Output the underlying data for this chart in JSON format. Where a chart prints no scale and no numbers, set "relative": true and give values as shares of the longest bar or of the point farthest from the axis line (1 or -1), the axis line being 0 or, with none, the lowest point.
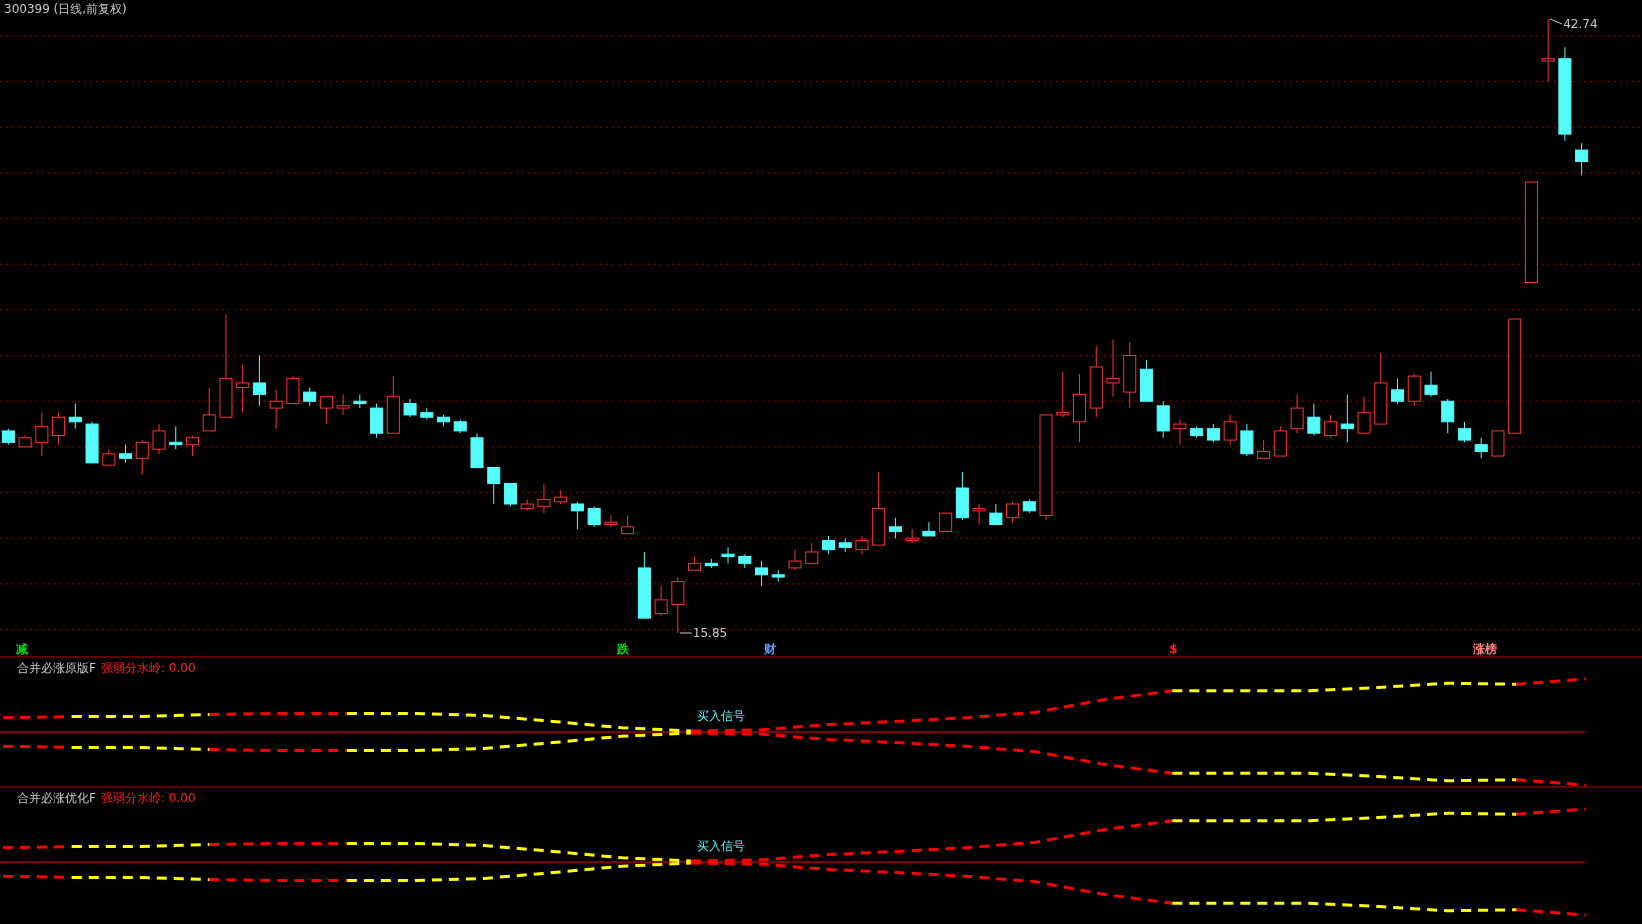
{
  "chart_data": [
    {
      "type": "candlestick",
      "title": "300399 (日线,前复权)",
      "grid": "y",
      "yticks": [
        {
          "value": 42,
          "label": null
        },
        {
          "value": 40,
          "label": null
        },
        {
          "value": 38,
          "label": null
        },
        {
          "value": 36,
          "label": null
        },
        {
          "value": 34,
          "label": null
        },
        {
          "value": 32,
          "label": null
        },
        {
          "value": 30,
          "label": null
        },
        {
          "value": 28,
          "label": null
        },
        {
          "value": 26,
          "label": null
        },
        {
          "value": 24,
          "label": null
        },
        {
          "value": 22,
          "label": null
        },
        {
          "value": 20,
          "label": null
        },
        {
          "value": 18,
          "label": null
        },
        {
          "value": 16,
          "label": null
        }
      ],
      "categories": [
        null,
        null,
        null,
        null,
        null,
        null,
        null,
        null,
        null,
        null,
        null,
        null,
        null,
        null,
        null,
        null,
        null,
        null,
        null,
        null,
        null,
        null,
        null,
        null,
        null,
        null,
        null,
        null,
        null,
        null,
        null,
        null,
        null,
        null,
        null,
        null,
        null,
        null,
        null,
        null,
        null,
        null,
        null,
        null,
        null,
        null,
        null,
        null,
        null,
        null,
        null,
        null,
        null,
        null,
        null,
        null,
        null,
        null,
        null,
        null,
        null,
        null,
        null,
        null,
        null,
        null,
        null,
        null,
        null,
        null,
        null,
        null,
        null,
        null,
        null,
        null,
        null,
        null,
        null,
        null,
        null,
        null,
        null,
        null,
        null,
        null,
        null,
        null,
        null,
        null,
        null,
        null,
        null,
        null,
        null
      ],
      "ohlc": [
        [
          24.7,
          24.8,
          24.1,
          24.2
        ],
        [
          24.0,
          24.5,
          24.0,
          24.4
        ],
        [
          24.2,
          25.5,
          23.6,
          24.9
        ],
        [
          24.5,
          25.5,
          24.1,
          25.3
        ],
        [
          25.3,
          25.9,
          24.8,
          25.1
        ],
        [
          25.0,
          25.1,
          23.3,
          23.3
        ],
        [
          23.2,
          23.9,
          23.2,
          23.7
        ],
        [
          23.7,
          24.1,
          23.3,
          23.5
        ],
        [
          23.5,
          24.3,
          22.8,
          24.2
        ],
        [
          23.9,
          25.0,
          23.7,
          24.7
        ],
        [
          24.2,
          24.9,
          23.9,
          24.1
        ],
        [
          24.1,
          24.5,
          23.6,
          24.4
        ],
        [
          24.7,
          26.6,
          24.7,
          25.4
        ],
        [
          25.3,
          29.8,
          25.3,
          27.0
        ],
        [
          26.6,
          27.6,
          25.5,
          26.8
        ],
        [
          26.8,
          28.0,
          25.8,
          26.3
        ],
        [
          25.7,
          26.5,
          24.8,
          26.0
        ],
        [
          25.9,
          27.1,
          25.9,
          27.0
        ],
        [
          26.4,
          26.6,
          25.8,
          26.0
        ],
        [
          25.7,
          26.2,
          25.0,
          26.2
        ],
        [
          25.7,
          26.3,
          25.4,
          25.8
        ],
        [
          26.0,
          26.3,
          25.7,
          25.9
        ],
        [
          25.7,
          25.9,
          24.4,
          24.6
        ],
        [
          24.6,
          27.1,
          24.6,
          26.2
        ],
        [
          25.9,
          26.1,
          25.3,
          25.4
        ],
        [
          25.5,
          25.7,
          25.2,
          25.3
        ],
        [
          25.3,
          25.4,
          24.9,
          25.1
        ],
        [
          25.1,
          25.2,
          24.6,
          24.7
        ],
        [
          24.4,
          24.6,
          23.1,
          23.1
        ],
        [
          23.1,
          23.1,
          21.5,
          22.4
        ],
        [
          22.4,
          22.4,
          21.4,
          21.5
        ],
        [
          21.3,
          21.7,
          21.2,
          21.5
        ],
        [
          21.4,
          22.4,
          21.1,
          21.7
        ],
        [
          21.6,
          22.1,
          21.5,
          21.8
        ],
        [
          21.5,
          21.6,
          20.4,
          21.2
        ],
        [
          21.3,
          21.4,
          20.5,
          20.6
        ],
        [
          20.6,
          21.0,
          20.5,
          20.7
        ],
        [
          20.2,
          21.0,
          20.2,
          20.5
        ],
        [
          18.7,
          19.4,
          16.5,
          16.5
        ],
        [
          16.7,
          17.9,
          16.6,
          17.3
        ],
        [
          17.1,
          18.3,
          15.85,
          18.1
        ],
        [
          18.6,
          19.2,
          18.6,
          18.9
        ],
        [
          18.9,
          19.1,
          18.7,
          18.8
        ],
        [
          19.3,
          19.6,
          18.9,
          19.2
        ],
        [
          19.2,
          19.3,
          18.7,
          18.9
        ],
        [
          18.7,
          19.0,
          17.9,
          18.4
        ],
        [
          18.4,
          18.6,
          18.1,
          18.3
        ],
        [
          18.7,
          19.5,
          18.6,
          19.0
        ],
        [
          18.9,
          19.8,
          18.9,
          19.4
        ],
        [
          19.9,
          20.1,
          19.3,
          19.5
        ],
        [
          19.8,
          20.0,
          19.4,
          19.6
        ],
        [
          19.5,
          20.1,
          19.3,
          19.9
        ],
        [
          19.7,
          22.9,
          19.7,
          21.3
        ],
        [
          20.5,
          20.9,
          20.0,
          20.3
        ],
        [
          19.9,
          20.4,
          19.8,
          20.0
        ],
        [
          20.3,
          20.7,
          20.1,
          20.1
        ],
        [
          20.3,
          21.1,
          20.3,
          21.1
        ],
        [
          22.2,
          22.9,
          20.8,
          20.9
        ],
        [
          21.2,
          21.5,
          20.6,
          21.3
        ],
        [
          21.1,
          21.5,
          20.6,
          20.6
        ],
        [
          20.9,
          21.6,
          20.7,
          21.5
        ],
        [
          21.6,
          21.7,
          21.1,
          21.2
        ],
        [
          21.0,
          25.4,
          20.8,
          25.4
        ],
        [
          25.4,
          27.3,
          25.3,
          25.5
        ],
        [
          25.1,
          27.2,
          24.2,
          26.3
        ],
        [
          25.7,
          28.4,
          25.3,
          27.5
        ],
        [
          26.8,
          28.7,
          26.2,
          27.0
        ],
        [
          26.4,
          28.6,
          25.7,
          28.0
        ],
        [
          27.4,
          27.8,
          26.0,
          26.0
        ],
        [
          25.8,
          26.0,
          24.4,
          24.7
        ],
        [
          24.8,
          25.2,
          24.1,
          25.0
        ],
        [
          24.8,
          24.9,
          24.4,
          24.5
        ],
        [
          24.8,
          25.0,
          24.2,
          24.3
        ],
        [
          24.3,
          25.4,
          24.1,
          25.1
        ],
        [
          24.7,
          25.0,
          23.6,
          23.7
        ],
        [
          23.5,
          24.3,
          23.5,
          23.8
        ],
        [
          23.6,
          24.9,
          23.6,
          24.7
        ],
        [
          24.8,
          26.3,
          24.6,
          25.7
        ],
        [
          25.3,
          25.9,
          24.5,
          24.6
        ],
        [
          24.5,
          25.4,
          24.4,
          25.1
        ],
        [
          25.0,
          26.3,
          24.2,
          24.8
        ],
        [
          24.6,
          26.2,
          24.6,
          25.5
        ],
        [
          25.0,
          28.1,
          25.0,
          26.8
        ],
        [
          26.5,
          27.0,
          25.9,
          26.0
        ],
        [
          26.0,
          27.2,
          25.8,
          27.1
        ],
        [
          26.7,
          27.3,
          26.2,
          26.3
        ],
        [
          26.0,
          26.1,
          24.6,
          25.1
        ],
        [
          24.8,
          25.1,
          24.2,
          24.3
        ],
        [
          24.1,
          24.4,
          23.5,
          23.8
        ],
        [
          23.6,
          24.7,
          23.6,
          24.7
        ],
        [
          24.6,
          29.6,
          24.6,
          29.6
        ],
        [
          31.2,
          35.6,
          31.2,
          35.6
        ],
        [
          40.9,
          42.74,
          40.0,
          41.0
        ],
        [
          41.0,
          41.5,
          37.4,
          37.7
        ],
        [
          37.0,
          37.3,
          35.9,
          36.5
        ]
      ],
      "annotations": [
        "42.74",
        "15.85",
        "减",
        "跌",
        "财",
        "$",
        "涨榜"
      ]
    },
    {
      "type": "line",
      "relative": true,
      "line_style": "dashed",
      "title": "合并必涨原版F",
      "subtitle": "强弱分水岭: 0.00",
      "annotations": [
        "买入信号"
      ],
      "categories": [
        null,
        null,
        null,
        null,
        null,
        null,
        null,
        null,
        null,
        null,
        null,
        null,
        null,
        null,
        null,
        null,
        null,
        null,
        null,
        null,
        null,
        null,
        null,
        null
      ],
      "ref_lines": [
        {
          "axis": "y",
          "value": 0,
          "color": "#ff0000"
        }
      ],
      "series": [
        {
          "color": "#ff0000",
          "values": [
            0.27,
            0.29,
            null,
            0.33,
            0.35,
            0.35,
            null,
            null,
            null,
            null,
            0.02,
            0.04,
            0.14,
            0.2,
            0.27,
            0.37,
            0.61,
            0.78,
            null,
            null,
            null,
            null,
            0.9,
            1
          ]
        },
        {
          "color": "#ffff00",
          "values": [
            null,
            0.29,
            0.29,
            0.33,
            null,
            0.35,
            0.35,
            0.31,
            0.2,
            0.08,
            0.02,
            null,
            null,
            null,
            null,
            null,
            null,
            0.78,
            0.78,
            0.78,
            0.84,
            0.92,
            0.9,
            null
          ]
        },
        {
          "color": "#ff0000",
          "values": [
            -0.27,
            -0.29,
            null,
            -0.33,
            -0.35,
            -0.35,
            null,
            null,
            null,
            null,
            -0.02,
            -0.04,
            -0.14,
            -0.2,
            -0.27,
            -0.37,
            -0.61,
            -0.78,
            null,
            null,
            null,
            null,
            -0.9,
            -1
          ]
        },
        {
          "color": "#ffff00",
          "values": [
            null,
            -0.29,
            -0.29,
            -0.33,
            null,
            -0.35,
            -0.35,
            -0.31,
            -0.2,
            -0.08,
            -0.02,
            null,
            null,
            null,
            null,
            null,
            null,
            -0.78,
            -0.78,
            -0.78,
            -0.84,
            -0.92,
            -0.9,
            null
          ]
        }
      ]
    },
    {
      "type": "line",
      "relative": true,
      "line_style": "dashed",
      "title": "合并必涨优化F",
      "subtitle": "强弱分水岭: 0.00",
      "annotations": [
        "买入信号"
      ],
      "categories": [
        null,
        null,
        null,
        null,
        null,
        null,
        null,
        null,
        null,
        null,
        null,
        null,
        null,
        null,
        null,
        null,
        null,
        null,
        null,
        null,
        null,
        null,
        null,
        null
      ],
      "ref_lines": [
        {
          "axis": "y",
          "value": 0,
          "color": "#ff0000"
        }
      ],
      "series": [
        {
          "color": "#ff0000",
          "values": [
            0.27,
            0.29,
            null,
            0.33,
            0.35,
            0.35,
            null,
            null,
            null,
            null,
            0.02,
            0.04,
            0.14,
            0.2,
            0.27,
            0.37,
            0.61,
            0.78,
            null,
            null,
            null,
            null,
            0.9,
            1
          ]
        },
        {
          "color": "#ffff00",
          "values": [
            null,
            0.29,
            0.29,
            0.33,
            null,
            0.35,
            0.35,
            0.31,
            0.2,
            0.08,
            0.02,
            null,
            null,
            null,
            null,
            null,
            null,
            0.78,
            0.78,
            0.78,
            0.84,
            0.92,
            0.9,
            null
          ]
        },
        {
          "color": "#ff0000",
          "values": [
            -0.27,
            -0.29,
            null,
            -0.33,
            -0.35,
            -0.35,
            null,
            null,
            null,
            null,
            -0.02,
            -0.04,
            -0.14,
            -0.2,
            -0.27,
            -0.37,
            -0.61,
            -0.78,
            null,
            null,
            null,
            null,
            -0.9,
            -1
          ]
        },
        {
          "color": "#ffff00",
          "values": [
            null,
            -0.29,
            -0.29,
            -0.33,
            null,
            -0.35,
            -0.35,
            -0.31,
            -0.2,
            -0.08,
            -0.02,
            null,
            null,
            null,
            null,
            null,
            null,
            -0.78,
            -0.78,
            -0.78,
            -0.84,
            -0.92,
            -0.9,
            null
          ]
        }
      ]
    }
  ]
}
